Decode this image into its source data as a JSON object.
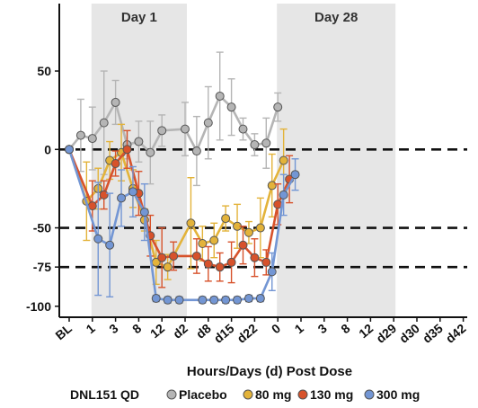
{
  "chart_data": {
    "type": "line",
    "xlabel": "Hours/Days (d) Post Dose",
    "ylabel": "",
    "ylim": [
      -107,
      93
    ],
    "yticks": [
      50,
      0,
      -50,
      -75,
      -100
    ],
    "ytick_labels": [
      "50",
      "0",
      "-50",
      "-75",
      "-100"
    ],
    "dashed_reference_lines": [
      0,
      -50,
      -75
    ],
    "categories": [
      "BL",
      "1",
      "3",
      "8",
      "12",
      "d2",
      "d8",
      "d15",
      "d22",
      "0",
      "1",
      "3",
      "8",
      "12",
      "d29",
      "d30",
      "d35",
      "d42"
    ],
    "shaded_regions": [
      {
        "label": "Day 1",
        "from": "1",
        "to": "d2"
      },
      {
        "label": "Day 28",
        "from": "0",
        "to": "d29"
      }
    ],
    "legend": {
      "title": "DNL151 QD",
      "position": "bottom"
    },
    "colors": {
      "Placebo": "#b5b5b5",
      "80 mg": "#e3b33a",
      "130 mg": "#d7522b",
      "300 mg": "#7396d4"
    },
    "series": [
      {
        "name": "Placebo",
        "x": [
          0,
          2,
          4,
          6,
          8,
          10,
          12,
          14,
          16,
          20,
          22,
          24,
          26,
          28,
          30,
          32,
          34,
          36
        ],
        "values": [
          0,
          9,
          7,
          17,
          30,
          3,
          5,
          -2,
          12,
          13,
          -1,
          17,
          34,
          27,
          13,
          3,
          4,
          27
        ],
        "err": [
          0,
          23,
          20,
          33,
          14,
          9,
          13,
          20,
          10,
          17,
          22,
          23,
          28,
          18,
          7,
          7,
          16,
          9
        ]
      },
      {
        "name": "80 mg",
        "x": [
          0,
          3,
          5,
          7,
          9,
          11,
          13,
          15,
          17,
          21,
          23,
          25,
          27,
          29,
          31,
          33,
          35,
          37
        ],
        "values": [
          0,
          -33,
          -25,
          -7,
          -2,
          -25,
          -45,
          -72,
          -75,
          -47,
          -60,
          -58,
          -44,
          -49,
          -53,
          -50,
          -23,
          -7
        ],
        "err": [
          0,
          25,
          13,
          12,
          18,
          12,
          7,
          14,
          8,
          29,
          11,
          11,
          8,
          14,
          7,
          19,
          20,
          20
        ]
      },
      {
        "name": "130 mg",
        "x": [
          0,
          4,
          6,
          8,
          10,
          12,
          14,
          16,
          18,
          22,
          24,
          26,
          28,
          30,
          32,
          34,
          36,
          38
        ],
        "values": [
          0,
          -36,
          -29,
          -9,
          0,
          -28,
          -55,
          -69,
          -68,
          -68,
          -73,
          -75,
          -72,
          -61,
          -69,
          -72,
          -35,
          -19
        ],
        "err": [
          0,
          16,
          9,
          8,
          12,
          14,
          13,
          19,
          9,
          11,
          11,
          9,
          13,
          12,
          12,
          8,
          13,
          15
        ]
      },
      {
        "name": "300 mg",
        "x": [
          0,
          5,
          7,
          9,
          11,
          13,
          15,
          17,
          19,
          23,
          25,
          27,
          29,
          31,
          33,
          35,
          37,
          39
        ],
        "values": [
          0,
          -57,
          -61,
          -31,
          -27,
          -40,
          -95,
          -96,
          -96,
          -96,
          -96,
          -96,
          -96,
          -95,
          -95,
          -78,
          -29,
          -16
        ],
        "err": [
          0,
          36,
          33,
          18,
          16,
          18,
          2,
          2,
          2,
          2,
          2,
          2,
          2,
          2,
          2,
          12,
          13,
          10
        ]
      }
    ]
  }
}
